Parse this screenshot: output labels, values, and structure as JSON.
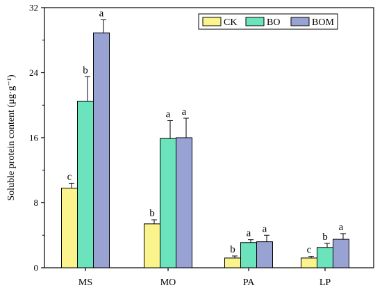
{
  "chart_data": {
    "type": "bar",
    "ylabel": "Soluble protein content (μg·g⁻¹)",
    "ylim": [
      0,
      32
    ],
    "yticks": [
      0,
      8,
      16,
      24,
      32
    ],
    "categories": [
      "MS",
      "MO",
      "PA",
      "LP"
    ],
    "series": [
      {
        "name": "CK",
        "color": "#fbf38c",
        "values": [
          9.8,
          5.4,
          1.2,
          1.2
        ],
        "errors": [
          0.6,
          0.5,
          0.25,
          0.2
        ],
        "letters": [
          "c",
          "b",
          "b",
          "c"
        ]
      },
      {
        "name": "BO",
        "color": "#6be3bd",
        "values": [
          20.5,
          15.9,
          3.1,
          2.5
        ],
        "errors": [
          3.0,
          2.2,
          0.35,
          0.5
        ],
        "letters": [
          "b",
          "a",
          "a",
          "b"
        ]
      },
      {
        "name": "BOM",
        "color": "#98a2d3",
        "values": [
          28.9,
          16.0,
          3.2,
          3.5
        ],
        "errors": [
          1.6,
          2.4,
          0.8,
          0.7
        ],
        "letters": [
          "a",
          "a",
          "a",
          "a"
        ]
      }
    ],
    "legend_position": "top-right",
    "grid": false
  }
}
